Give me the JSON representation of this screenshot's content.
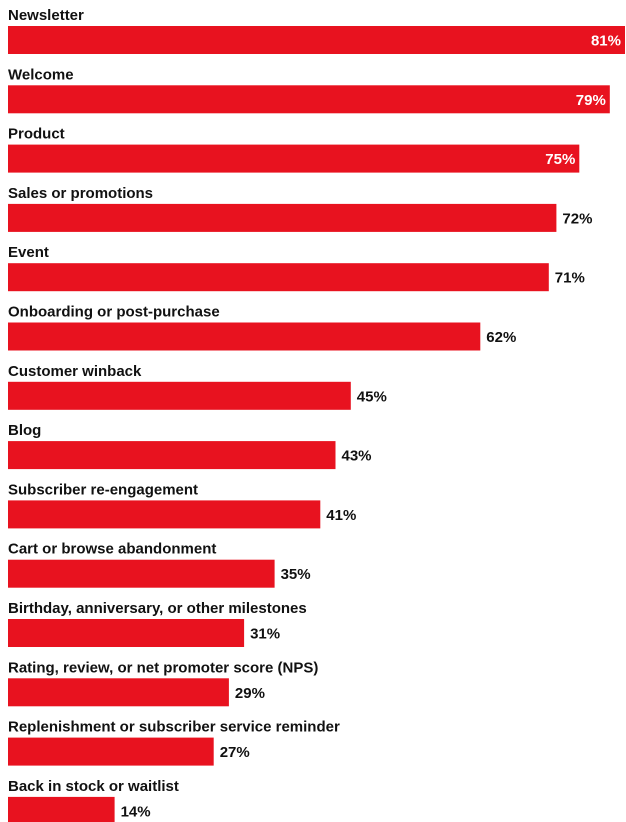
{
  "chart_data": {
    "type": "bar",
    "orientation": "horizontal",
    "categories": [
      "Newsletter",
      "Welcome",
      "Product",
      "Sales or promotions",
      "Event",
      "Onboarding or post-purchase",
      "Customer winback",
      "Blog",
      "Subscriber re-engagement",
      "Cart or browse abandonment",
      "Birthday, anniversary, or other milestones",
      "Rating, review, or net promoter score (NPS)",
      "Replenishment or subscriber service reminder",
      "Back in stock or waitlist"
    ],
    "values": [
      81,
      79,
      75,
      72,
      71,
      62,
      45,
      43,
      41,
      35,
      31,
      29,
      27,
      14
    ],
    "value_labels": [
      "81%",
      "79%",
      "75%",
      "72%",
      "71%",
      "62%",
      "45%",
      "43%",
      "41%",
      "35%",
      "31%",
      "29%",
      "27%",
      "14%"
    ],
    "unit": "%",
    "bar_color": "#e8121f",
    "label_color_inside": "#ffffff",
    "label_color_outside": "#111111",
    "grid": false,
    "legend": "none"
  }
}
